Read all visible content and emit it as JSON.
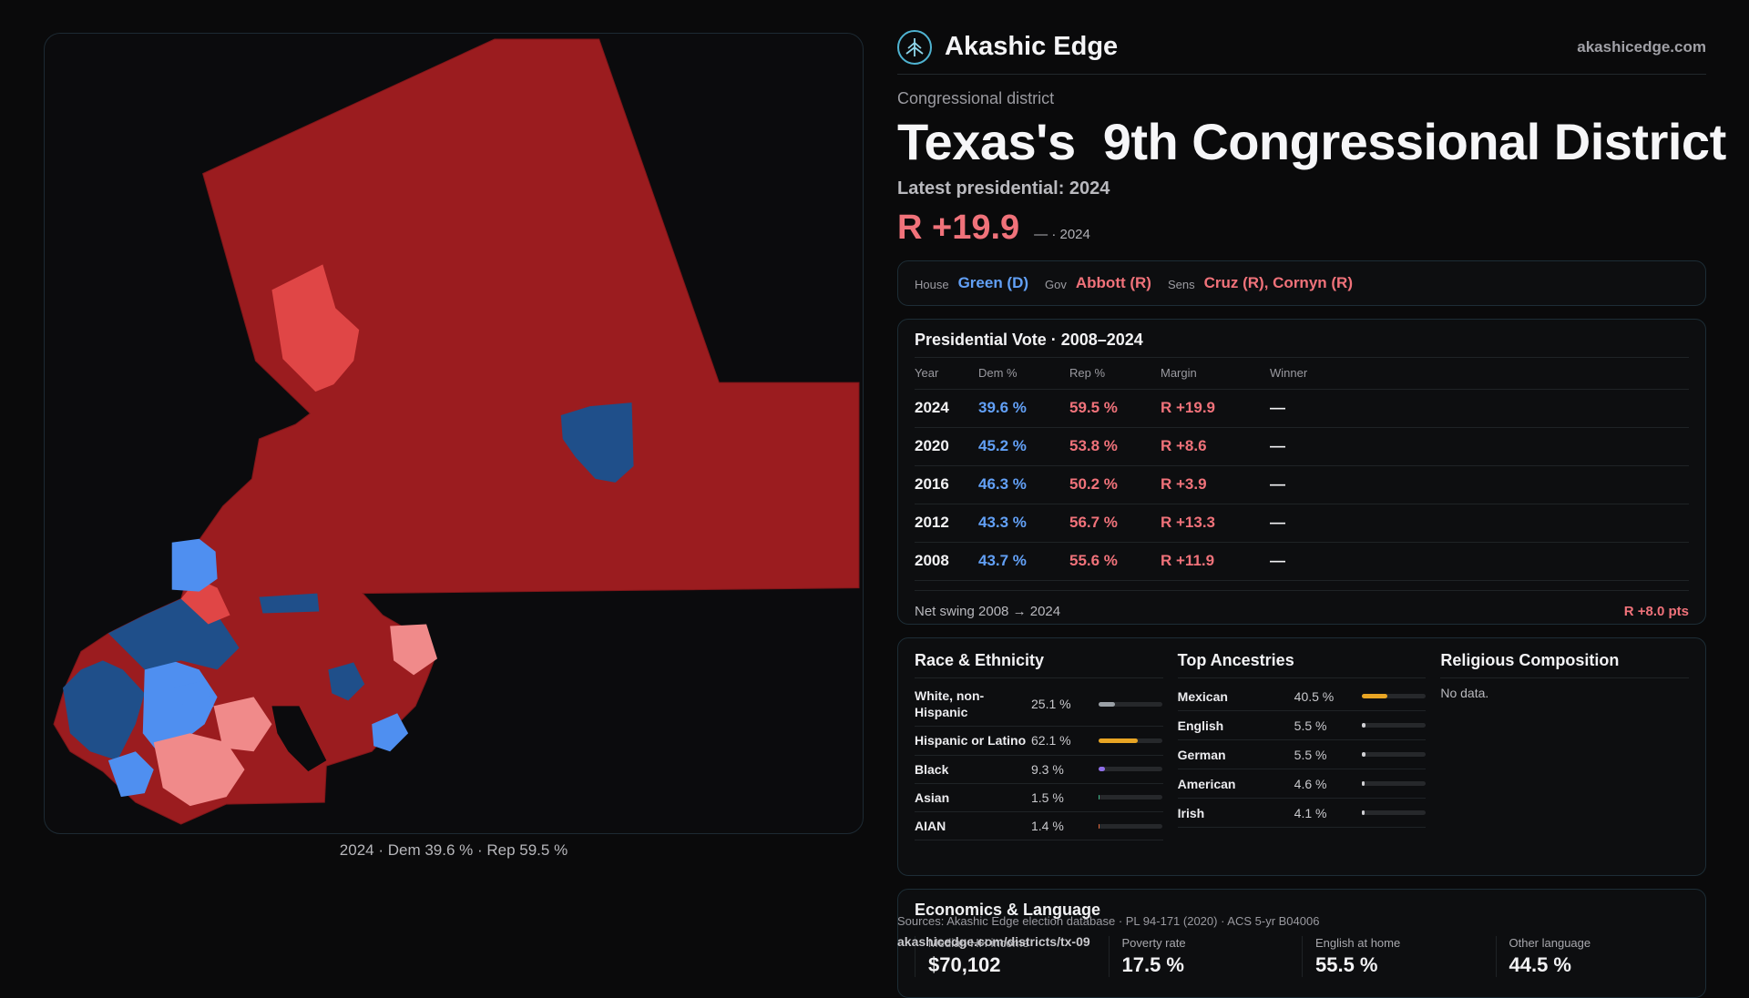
{
  "brand": {
    "name": "Akashic Edge",
    "url": "akashicedge.com",
    "logo_icon": "tree-logo-icon"
  },
  "header": {
    "eyebrow": "Congressional district",
    "title": "Texas's  9th Congressional District",
    "latest_label": "Latest presidential: 2024",
    "margin": "R +19.9",
    "margin_sub": "— · 2024"
  },
  "officials": {
    "house_key": "House",
    "house_val": "Green (D)",
    "gov_key": "Gov",
    "gov_val": "Abbott (R)",
    "sens_key": "Sens",
    "sens_val": "Cruz (R), Cornyn (R)"
  },
  "presidential": {
    "title": "Presidential Vote · 2008–2024",
    "columns": [
      "Year",
      "Dem %",
      "Rep %",
      "Margin",
      "Winner"
    ],
    "rows": [
      {
        "year": "2024",
        "dem": "39.6 %",
        "rep": "59.5 %",
        "margin": "R +19.9",
        "winner": "—"
      },
      {
        "year": "2020",
        "dem": "45.2 %",
        "rep": "53.8 %",
        "margin": "R +8.6",
        "winner": "—"
      },
      {
        "year": "2016",
        "dem": "46.3 %",
        "rep": "50.2 %",
        "margin": "R +3.9",
        "winner": "—"
      },
      {
        "year": "2012",
        "dem": "43.3 %",
        "rep": "56.7 %",
        "margin": "R +13.3",
        "winner": "—"
      },
      {
        "year": "2008",
        "dem": "43.7 %",
        "rep": "55.6 %",
        "margin": "R +11.9",
        "winner": "—"
      }
    ],
    "swing_label": "Net swing 2008 → 2024",
    "swing_value": "R +8.0 pts"
  },
  "race": {
    "title": "Race & Ethnicity",
    "rows": [
      {
        "name": "White, non-Hispanic",
        "pct": "25.1 %",
        "value": 25.1,
        "color": "#9aa0a6"
      },
      {
        "name": "Hispanic or Latino",
        "pct": "62.1 %",
        "value": 62.1,
        "color": "#e8a524"
      },
      {
        "name": "Black",
        "pct": "9.3 %",
        "value": 9.3,
        "color": "#8f6ee8"
      },
      {
        "name": "Asian",
        "pct": "1.5 %",
        "value": 1.5,
        "color": "#3fb98a"
      },
      {
        "name": "AIAN",
        "pct": "1.4 %",
        "value": 1.4,
        "color": "#e0683c"
      }
    ]
  },
  "ancestry": {
    "title": "Top Ancestries",
    "rows": [
      {
        "name": "Mexican",
        "pct": "40.5 %",
        "value": 40.5
      },
      {
        "name": "English",
        "pct": "5.5 %",
        "value": 5.5
      },
      {
        "name": "German",
        "pct": "5.5 %",
        "value": 5.5
      },
      {
        "name": "American",
        "pct": "4.6 %",
        "value": 4.6
      },
      {
        "name": "Irish",
        "pct": "4.1 %",
        "value": 4.1
      }
    ],
    "bar_color": "#e8a524"
  },
  "religion": {
    "title": "Religious Composition",
    "empty": "No data."
  },
  "economics": {
    "title": "Economics & Language",
    "cells": [
      {
        "label": "Median HH income",
        "value": "$70,102"
      },
      {
        "label": "Poverty rate",
        "value": "17.5 %"
      },
      {
        "label": "English at home",
        "value": "55.5 %"
      },
      {
        "label": "Other language",
        "value": "44.5 %"
      }
    ]
  },
  "footer": {
    "sources": "Sources: Akashic Edge election database · PL 94-171 (2020) · ACS 5-yr B04006",
    "url": "akashicedge.com/districts/tx-09"
  },
  "map": {
    "caption": "2024 · Dem 39.6 % · Rep 59.5 %"
  },
  "colors": {
    "dem": "#62a0f6",
    "rep": "#f0727a",
    "safe_rep": "#9b1c1f",
    "lean_rep": "#e04646",
    "safe_dem": "#1f4f8a",
    "lean_dem": "#4f8ff0"
  }
}
